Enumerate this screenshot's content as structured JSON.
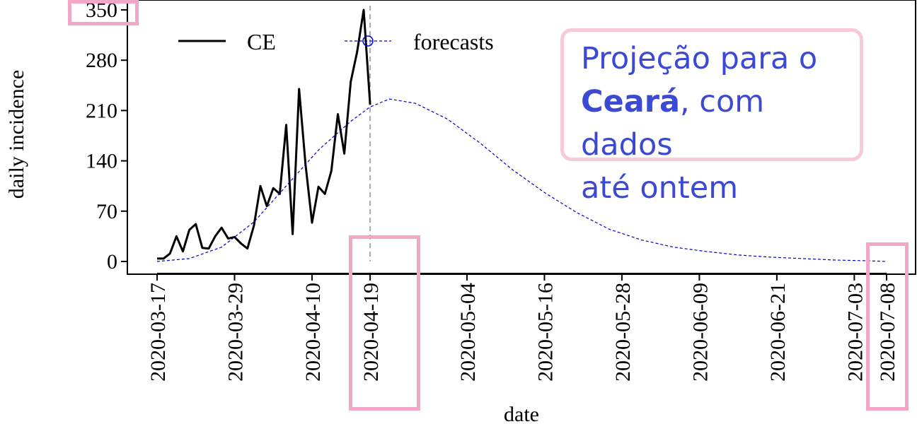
{
  "chart_data": {
    "type": "line",
    "xlabel": "date",
    "ylabel": "daily incidence",
    "ylim": [
      0,
      350
    ],
    "yticks": [
      0,
      70,
      140,
      210,
      280,
      350
    ],
    "xlim": [
      "2020-03-17",
      "2020-07-08"
    ],
    "xticks": [
      "2020-03-17",
      "2020-03-29",
      "2020-04-10",
      "2020-04-19",
      "2020-05-04",
      "2020-05-16",
      "2020-05-28",
      "2020-06-09",
      "2020-06-21",
      "2020-07-03",
      "2020-07-08"
    ],
    "vline": "2020-04-19",
    "legend": [
      "CE",
      "forecasts"
    ],
    "colors": {
      "observed": "#000000",
      "forecast": "#0000cc",
      "vline": "#aaaaaa",
      "highlight": "#f4a6c6",
      "callout_text": "#3c49d2"
    },
    "series": [
      {
        "name": "CE",
        "style": "solid",
        "x": [
          "2020-03-17",
          "2020-03-18",
          "2020-03-19",
          "2020-03-20",
          "2020-03-21",
          "2020-03-22",
          "2020-03-23",
          "2020-03-24",
          "2020-03-25",
          "2020-03-26",
          "2020-03-27",
          "2020-03-28",
          "2020-03-29",
          "2020-03-30",
          "2020-03-31",
          "2020-04-01",
          "2020-04-02",
          "2020-04-03",
          "2020-04-04",
          "2020-04-05",
          "2020-04-06",
          "2020-04-07",
          "2020-04-08",
          "2020-04-09",
          "2020-04-10",
          "2020-04-11",
          "2020-04-12",
          "2020-04-13",
          "2020-04-14",
          "2020-04-15",
          "2020-04-16",
          "2020-04-17",
          "2020-04-18",
          "2020-04-19"
        ],
        "y": [
          4,
          4,
          11,
          35,
          14,
          44,
          52,
          19,
          18,
          35,
          47,
          32,
          34,
          25,
          18,
          50,
          105,
          77,
          102,
          94,
          190,
          38,
          240,
          135,
          54,
          104,
          94,
          126,
          205,
          150,
          250,
          292,
          350,
          218
        ]
      },
      {
        "name": "forecasts",
        "style": "dashed",
        "x": [
          "2020-03-17",
          "2020-03-22",
          "2020-03-27",
          "2020-04-01",
          "2020-04-06",
          "2020-04-11",
          "2020-04-16",
          "2020-04-19",
          "2020-04-22",
          "2020-04-26",
          "2020-05-01",
          "2020-05-06",
          "2020-05-11",
          "2020-05-16",
          "2020-05-21",
          "2020-05-26",
          "2020-05-31",
          "2020-06-05",
          "2020-06-10",
          "2020-06-15",
          "2020-06-20",
          "2020-06-25",
          "2020-06-30",
          "2020-07-05",
          "2020-07-08"
        ],
        "y": [
          0,
          4,
          20,
          55,
          105,
          155,
          195,
          215,
          226,
          220,
          198,
          165,
          128,
          96,
          68,
          45,
          30,
          20,
          14,
          9,
          6,
          4,
          2,
          1,
          0
        ]
      }
    ]
  },
  "callout": {
    "line1": "Projeção para o",
    "bold": "Ceará",
    "line2_rest": ", com dados",
    "line3": "até ontem"
  }
}
